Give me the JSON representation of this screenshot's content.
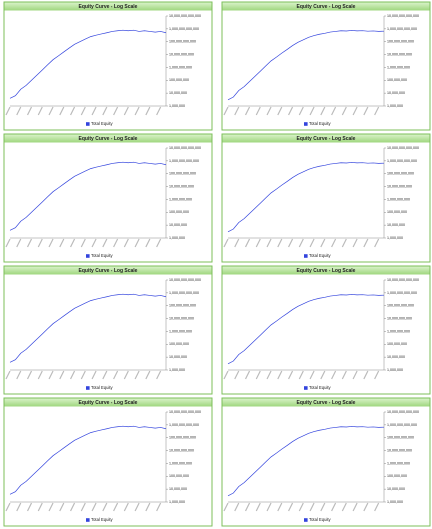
{
  "chart_data": [
    {
      "type": "line",
      "title": "Equity Curve - Log Scale",
      "log_scale": true,
      "ylim": [
        1000000,
        10000000000000
      ],
      "yticks": [
        {
          "value": 1000000,
          "label": "1,000,000"
        },
        {
          "value": 10000000,
          "label": "10,000,000"
        },
        {
          "value": 100000000,
          "label": "100,000,000"
        },
        {
          "value": 1000000000,
          "label": "1,000,000,000"
        },
        {
          "value": 10000000000,
          "label": "10,000,000,000"
        },
        {
          "value": 100000000000,
          "label": "100,000,000,000"
        },
        {
          "value": 1000000000000,
          "label": "1,000,000,000,000"
        },
        {
          "value": 10000000000000,
          "label": "10,000,000,000,000"
        }
      ],
      "series": [
        {
          "name": "Total Equity",
          "color": "#3344dd",
          "values": [
            4000000,
            6300000,
            20000000,
            40000000,
            100000000,
            250000000,
            630000000,
            1600000000,
            4000000000,
            7900000000,
            16000000000,
            32000000000,
            63000000000,
            100000000000,
            160000000000,
            250000000000,
            320000000000,
            400000000000,
            500000000000,
            630000000000,
            710000000000,
            790000000000,
            710000000000,
            790000000000,
            630000000000,
            710000000000,
            630000000000,
            560000000000,
            630000000000,
            500000000000
          ]
        }
      ]
    },
    {
      "type": "line",
      "title": "Equity Curve - Log Scale",
      "log_scale": true,
      "ylim": [
        1000000,
        10000000000000
      ],
      "yticks": [
        {
          "value": 1000000,
          "label": "1,000,000"
        },
        {
          "value": 10000000,
          "label": "10,000,000"
        },
        {
          "value": 100000000,
          "label": "100,000,000"
        },
        {
          "value": 1000000000,
          "label": "1,000,000,000"
        },
        {
          "value": 10000000000,
          "label": "10,000,000,000"
        },
        {
          "value": 100000000000,
          "label": "100,000,000,000"
        },
        {
          "value": 1000000000000,
          "label": "1,000,000,000,000"
        },
        {
          "value": 10000000000000,
          "label": "10,000,000,000,000"
        }
      ],
      "series": [
        {
          "name": "Total Equity",
          "color": "#3344dd",
          "values": [
            3000000,
            5000000,
            16000000,
            32000000,
            80000000,
            200000000,
            500000000,
            1300000000,
            3200000000,
            6300000000,
            13000000000,
            25000000000,
            50000000000,
            90000000000,
            140000000000,
            220000000000,
            300000000000,
            380000000000,
            450000000000,
            560000000000,
            630000000000,
            710000000000,
            680000000000,
            750000000000,
            700000000000,
            720000000000,
            660000000000,
            690000000000,
            640000000000,
            660000000000
          ]
        }
      ]
    },
    {
      "type": "line",
      "title": "Equity Curve - Log Scale",
      "log_scale": true,
      "ylim": [
        1000000,
        10000000000000
      ],
      "yticks": [
        {
          "value": 1000000,
          "label": "1,000,000"
        },
        {
          "value": 10000000,
          "label": "10,000,000"
        },
        {
          "value": 100000000,
          "label": "100,000,000"
        },
        {
          "value": 1000000000,
          "label": "1,000,000,000"
        },
        {
          "value": 10000000000,
          "label": "10,000,000,000"
        },
        {
          "value": 100000000000,
          "label": "100,000,000,000"
        },
        {
          "value": 1000000000000,
          "label": "1,000,000,000,000"
        },
        {
          "value": 10000000000000,
          "label": "10,000,000,000,000"
        }
      ],
      "series": [
        {
          "name": "Total Equity",
          "color": "#3344dd",
          "values": [
            4000000,
            6300000,
            20000000,
            40000000,
            100000000,
            250000000,
            630000000,
            1600000000,
            4000000000,
            7900000000,
            16000000000,
            32000000000,
            63000000000,
            100000000000,
            160000000000,
            250000000000,
            320000000000,
            400000000000,
            500000000000,
            630000000000,
            710000000000,
            790000000000,
            710000000000,
            790000000000,
            630000000000,
            710000000000,
            630000000000,
            560000000000,
            630000000000,
            500000000000
          ]
        }
      ]
    },
    {
      "type": "line",
      "title": "Equity Curve - Log Scale",
      "log_scale": true,
      "ylim": [
        1000000,
        10000000000000
      ],
      "yticks": [
        {
          "value": 1000000,
          "label": "1,000,000"
        },
        {
          "value": 10000000,
          "label": "10,000,000"
        },
        {
          "value": 100000000,
          "label": "100,000,000"
        },
        {
          "value": 1000000000,
          "label": "1,000,000,000"
        },
        {
          "value": 10000000000,
          "label": "10,000,000,000"
        },
        {
          "value": 100000000000,
          "label": "100,000,000,000"
        },
        {
          "value": 1000000000000,
          "label": "1,000,000,000,000"
        },
        {
          "value": 10000000000000,
          "label": "10,000,000,000,000"
        }
      ],
      "series": [
        {
          "name": "Total Equity",
          "color": "#3344dd",
          "values": [
            3000000,
            5000000,
            16000000,
            32000000,
            80000000,
            200000000,
            500000000,
            1300000000,
            3200000000,
            6300000000,
            13000000000,
            25000000000,
            50000000000,
            90000000000,
            140000000000,
            220000000000,
            300000000000,
            380000000000,
            450000000000,
            560000000000,
            630000000000,
            710000000000,
            680000000000,
            750000000000,
            700000000000,
            720000000000,
            660000000000,
            690000000000,
            640000000000,
            660000000000
          ]
        }
      ]
    },
    {
      "type": "line",
      "title": "Equity Curve - Log Scale",
      "log_scale": true,
      "ylim": [
        1000000,
        10000000000000
      ],
      "yticks": [
        {
          "value": 1000000,
          "label": "1,000,000"
        },
        {
          "value": 10000000,
          "label": "10,000,000"
        },
        {
          "value": 100000000,
          "label": "100,000,000"
        },
        {
          "value": 1000000000,
          "label": "1,000,000,000"
        },
        {
          "value": 10000000000,
          "label": "10,000,000,000"
        },
        {
          "value": 100000000000,
          "label": "100,000,000,000"
        },
        {
          "value": 1000000000000,
          "label": "1,000,000,000,000"
        },
        {
          "value": 10000000000000,
          "label": "10,000,000,000,000"
        }
      ],
      "series": [
        {
          "name": "Total Equity",
          "color": "#3344dd",
          "values": [
            4000000,
            6300000,
            20000000,
            40000000,
            100000000,
            250000000,
            630000000,
            1600000000,
            4000000000,
            7900000000,
            16000000000,
            32000000000,
            63000000000,
            100000000000,
            160000000000,
            250000000000,
            320000000000,
            400000000000,
            500000000000,
            630000000000,
            710000000000,
            790000000000,
            710000000000,
            790000000000,
            630000000000,
            710000000000,
            630000000000,
            560000000000,
            630000000000,
            500000000000
          ]
        }
      ]
    },
    {
      "type": "line",
      "title": "Equity Curve - Log Scale",
      "log_scale": true,
      "ylim": [
        1000000,
        10000000000000
      ],
      "yticks": [
        {
          "value": 1000000,
          "label": "1,000,000"
        },
        {
          "value": 10000000,
          "label": "10,000,000"
        },
        {
          "value": 100000000,
          "label": "100,000,000"
        },
        {
          "value": 1000000000,
          "label": "1,000,000,000"
        },
        {
          "value": 10000000000,
          "label": "10,000,000,000"
        },
        {
          "value": 100000000000,
          "label": "100,000,000,000"
        },
        {
          "value": 1000000000000,
          "label": "1,000,000,000,000"
        },
        {
          "value": 10000000000000,
          "label": "10,000,000,000,000"
        }
      ],
      "series": [
        {
          "name": "Total Equity",
          "color": "#3344dd",
          "values": [
            3000000,
            5000000,
            16000000,
            32000000,
            80000000,
            200000000,
            500000000,
            1300000000,
            3200000000,
            6300000000,
            13000000000,
            25000000000,
            50000000000,
            90000000000,
            140000000000,
            220000000000,
            300000000000,
            380000000000,
            450000000000,
            560000000000,
            630000000000,
            710000000000,
            680000000000,
            750000000000,
            700000000000,
            720000000000,
            660000000000,
            690000000000,
            640000000000,
            660000000000
          ]
        }
      ]
    },
    {
      "type": "line",
      "title": "Equity Curve - Log Scale",
      "log_scale": true,
      "ylim": [
        1000000,
        10000000000000
      ],
      "yticks": [
        {
          "value": 1000000,
          "label": "1,000,000"
        },
        {
          "value": 10000000,
          "label": "10,000,000"
        },
        {
          "value": 100000000,
          "label": "100,000,000"
        },
        {
          "value": 1000000000,
          "label": "1,000,000,000"
        },
        {
          "value": 10000000000,
          "label": "10,000,000,000"
        },
        {
          "value": 100000000000,
          "label": "100,000,000,000"
        },
        {
          "value": 1000000000000,
          "label": "1,000,000,000,000"
        },
        {
          "value": 10000000000000,
          "label": "10,000,000,000,000"
        }
      ],
      "series": [
        {
          "name": "Total Equity",
          "color": "#3344dd",
          "values": [
            4000000,
            6300000,
            20000000,
            40000000,
            100000000,
            250000000,
            630000000,
            1600000000,
            4000000000,
            7900000000,
            16000000000,
            32000000000,
            63000000000,
            100000000000,
            160000000000,
            250000000000,
            320000000000,
            400000000000,
            500000000000,
            630000000000,
            710000000000,
            790000000000,
            710000000000,
            790000000000,
            630000000000,
            710000000000,
            630000000000,
            560000000000,
            630000000000,
            500000000000
          ]
        }
      ]
    },
    {
      "type": "line",
      "title": "Equity Curve - Log Scale",
      "log_scale": true,
      "ylim": [
        1000000,
        10000000000000
      ],
      "yticks": [
        {
          "value": 1000000,
          "label": "1,000,000"
        },
        {
          "value": 10000000,
          "label": "10,000,000"
        },
        {
          "value": 100000000,
          "label": "100,000,000"
        },
        {
          "value": 1000000000,
          "label": "1,000,000,000"
        },
        {
          "value": 10000000000,
          "label": "10,000,000,000"
        },
        {
          "value": 100000000000,
          "label": "100,000,000,000"
        },
        {
          "value": 1000000000000,
          "label": "1,000,000,000,000"
        },
        {
          "value": 10000000000000,
          "label": "10,000,000,000,000"
        }
      ],
      "series": [
        {
          "name": "Total Equity",
          "color": "#3344dd",
          "values": [
            3000000,
            5000000,
            16000000,
            32000000,
            80000000,
            200000000,
            500000000,
            1300000000,
            3200000000,
            6300000000,
            13000000000,
            25000000000,
            50000000000,
            90000000000,
            140000000000,
            220000000000,
            300000000000,
            380000000000,
            450000000000,
            560000000000,
            630000000000,
            710000000000,
            680000000000,
            750000000000,
            700000000000,
            720000000000,
            660000000000,
            690000000000,
            640000000000,
            660000000000
          ]
        }
      ]
    }
  ]
}
